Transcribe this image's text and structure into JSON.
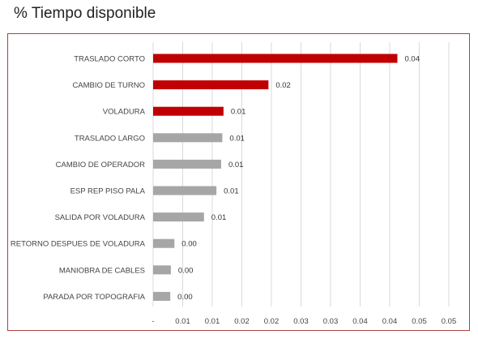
{
  "page": {
    "title": "% Tiempo disponible"
  },
  "colors": {
    "highlight": "#c00000",
    "normal": "#a6a6a6",
    "grid": "#d9d9d9",
    "frame": "#b04040"
  },
  "chart_data": {
    "type": "bar",
    "orientation": "horizontal",
    "title": "",
    "xlabel": "",
    "ylabel": "",
    "xlim": [
      0,
      0.05
    ],
    "grid": true,
    "categories": [
      "TRASLADO CORTO",
      "CAMBIO DE TURNO",
      "VOLADURA",
      "TRASLADO LARGO",
      "CAMBIO DE OPERADOR",
      "ESP REP PISO PALA",
      "SALIDA POR VOLADURA",
      "RETORNO DESPUES DE VOLADURA",
      "MANIOBRA DE CABLES",
      "PARADA POR TOPOGRAFIA"
    ],
    "values": [
      0.0413,
      0.0195,
      0.0119,
      0.0117,
      0.0115,
      0.0107,
      0.0086,
      0.0036,
      0.003,
      0.0029
    ],
    "data_labels": [
      "0.04",
      "0.02",
      "0.01",
      "0.01",
      "0.01",
      "0.01",
      "0.01",
      "0.00",
      "0.00",
      "0.00"
    ],
    "highlighted": [
      true,
      true,
      true,
      false,
      false,
      false,
      false,
      false,
      false,
      false
    ],
    "x_ticks": [
      0,
      0.005,
      0.01,
      0.015,
      0.02,
      0.025,
      0.03,
      0.035,
      0.04,
      0.045,
      0.05
    ],
    "x_tick_labels": [
      "-",
      "0.01",
      "0.01",
      "0.02",
      "0.02",
      "0.03",
      "0.03",
      "0.04",
      "0.04",
      "0.05",
      "0.05"
    ]
  }
}
